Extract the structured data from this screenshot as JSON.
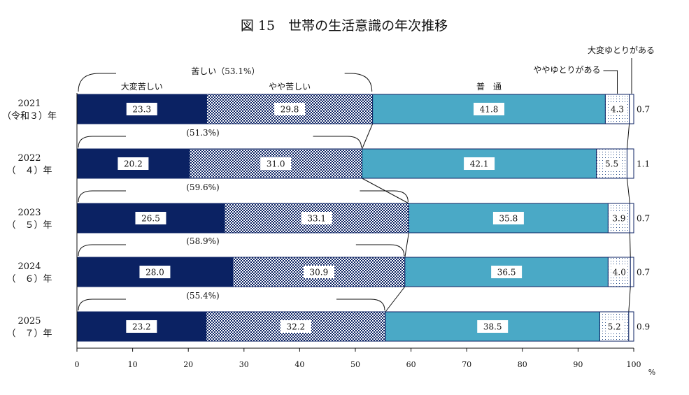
{
  "chart_data": {
    "type": "bar",
    "orientation": "horizontal",
    "stacked": true,
    "title": "図 15　世帯の生活意識の年次推移",
    "categories": [
      "2021",
      "2022",
      "2023",
      "2024",
      "2025"
    ],
    "category_sublabels": [
      "（令和３）年",
      "（　４）年",
      "（　５）年",
      "（　６）年",
      "（　７）年"
    ],
    "series": [
      {
        "name": "大変苦しい",
        "values": [
          23.3,
          20.2,
          26.5,
          28.0,
          23.2
        ],
        "color": "#0b2263",
        "pattern": "solid"
      },
      {
        "name": "やや苦しい",
        "values": [
          29.8,
          31.0,
          33.1,
          30.9,
          32.2
        ],
        "color": "#0b2263",
        "pattern": "checker"
      },
      {
        "name": "普　通",
        "values": [
          41.8,
          42.1,
          35.8,
          36.5,
          38.5
        ],
        "color": "#4aa9c6",
        "pattern": "solid"
      },
      {
        "name": "ややゆとりがある",
        "values": [
          4.3,
          5.5,
          3.9,
          4.0,
          5.2
        ],
        "color": "#ffffff",
        "pattern": "dots"
      },
      {
        "name": "大変ゆとりがある",
        "values": [
          0.7,
          1.1,
          0.7,
          0.7,
          0.9
        ],
        "color": "#ffffff",
        "pattern": "solid"
      }
    ],
    "value_labels": {
      "s0": [
        "23.3",
        "20.2",
        "26.5",
        "28.0",
        "23.2"
      ],
      "s1": [
        "29.8",
        "31.0",
        "33.1",
        "30.9",
        "32.2"
      ],
      "s2": [
        "41.8",
        "42.1",
        "35.8",
        "36.5",
        "38.5"
      ],
      "s3": [
        "4.3",
        "5.5",
        "3.9",
        "4.0",
        "5.2"
      ],
      "s4": [
        "0.7",
        "1.1",
        "0.7",
        "0.7",
        "0.9"
      ]
    },
    "hardship_total_label": "苦しい（53.1%）",
    "hardship_totals": [
      "(51.3%)",
      "(59.6%)",
      "(58.9%)",
      "(55.4%)"
    ],
    "xlim": [
      0,
      100
    ],
    "xticks": [
      "0",
      "10",
      "20",
      "30",
      "40",
      "50",
      "60",
      "70",
      "80",
      "90",
      "100"
    ],
    "xunit": "%",
    "grid": false,
    "legend": "inline-top"
  }
}
